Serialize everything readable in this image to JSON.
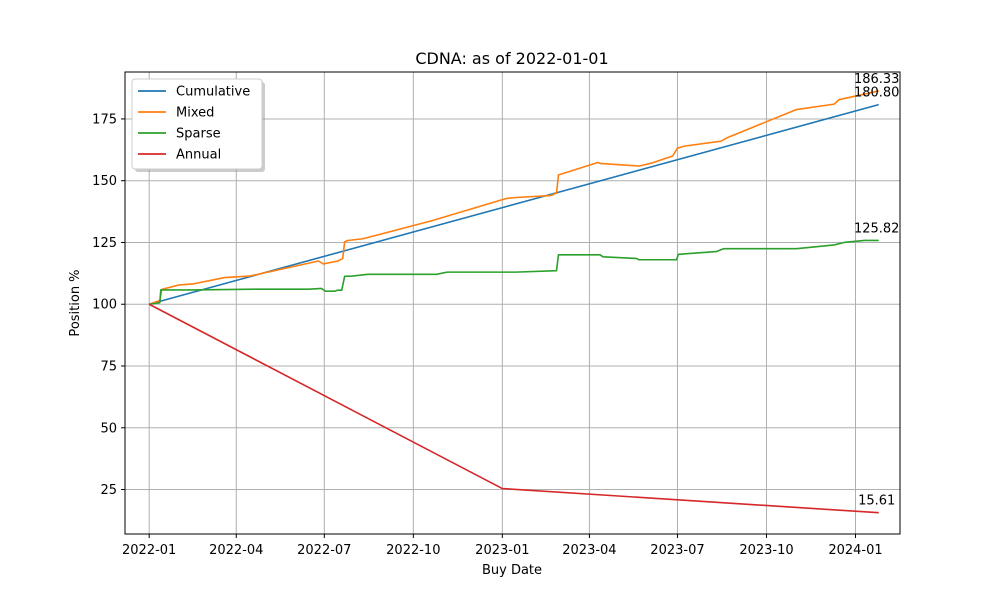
{
  "chart_data": {
    "type": "line",
    "title": "CDNA: as of 2022-01-01",
    "xlabel": "Buy Date",
    "ylabel": "Position %",
    "x_ticks": [
      "2022-01",
      "2022-04",
      "2022-07",
      "2022-10",
      "2023-01",
      "2023-04",
      "2023-07",
      "2023-10",
      "2024-01"
    ],
    "y_ticks": [
      "25",
      "50",
      "75",
      "100",
      "125",
      "150",
      "175"
    ],
    "ylim": [
      7,
      194
    ],
    "xlim": [
      "2021-12-07",
      "2024-02-16"
    ],
    "grid": true,
    "legend_position": "top-left",
    "series": [
      {
        "name": "Cumulative",
        "color": "#1f77b4",
        "points": [
          [
            "2022-01-01",
            100
          ],
          [
            "2024-01-25",
            180.8
          ]
        ]
      },
      {
        "name": "Mixed",
        "color": "#ff7f0e",
        "points": [
          [
            "2022-01-01",
            100
          ],
          [
            "2022-01-12",
            101.5
          ],
          [
            "2022-01-14",
            106
          ],
          [
            "2022-02-01",
            107.8
          ],
          [
            "2022-02-15",
            108.2
          ],
          [
            "2022-03-20",
            110.8
          ],
          [
            "2022-04-15",
            111.4
          ],
          [
            "2022-06-25",
            117.5
          ],
          [
            "2022-06-30",
            116.3
          ],
          [
            "2022-07-15",
            117.5
          ],
          [
            "2022-07-20",
            118.5
          ],
          [
            "2022-07-22",
            125.2
          ],
          [
            "2022-07-25",
            125.8
          ],
          [
            "2022-08-10",
            126.5
          ],
          [
            "2022-10-20",
            133.8
          ],
          [
            "2023-01-05",
            142.8
          ],
          [
            "2023-01-15",
            143.2
          ],
          [
            "2023-02-20",
            144.0
          ],
          [
            "2023-02-26",
            145.0
          ],
          [
            "2023-02-28",
            152.3
          ],
          [
            "2023-04-10",
            157.4
          ],
          [
            "2023-04-12",
            157.0
          ],
          [
            "2023-05-20",
            156.0
          ],
          [
            "2023-05-22",
            155.9
          ],
          [
            "2023-06-05",
            157.2
          ],
          [
            "2023-06-26",
            160.0
          ],
          [
            "2023-07-01",
            163.2
          ],
          [
            "2023-07-08",
            164.0
          ],
          [
            "2023-08-15",
            166.0
          ],
          [
            "2023-08-22",
            167.5
          ],
          [
            "2023-11-01",
            178.8
          ],
          [
            "2023-12-10",
            181.0
          ],
          [
            "2023-12-15",
            182.8
          ],
          [
            "2024-01-25",
            186.33
          ]
        ]
      },
      {
        "name": "Sparse",
        "color": "#2ca02c",
        "points": [
          [
            "2022-01-01",
            100
          ],
          [
            "2022-01-12",
            100.6
          ],
          [
            "2022-01-13",
            105.8
          ],
          [
            "2022-02-15",
            105.8
          ],
          [
            "2022-04-20",
            106.1
          ],
          [
            "2022-06-15",
            106.1
          ],
          [
            "2022-06-28",
            106.4
          ],
          [
            "2022-07-02",
            105.3
          ],
          [
            "2022-07-12",
            105.3
          ],
          [
            "2022-07-15",
            105.7
          ],
          [
            "2022-07-19",
            105.7
          ],
          [
            "2022-07-22",
            111.3
          ],
          [
            "2022-07-30",
            111.4
          ],
          [
            "2022-08-15",
            112.1
          ],
          [
            "2022-10-25",
            112.1
          ],
          [
            "2022-11-05",
            113.0
          ],
          [
            "2023-01-15",
            113.0
          ],
          [
            "2023-02-26",
            113.6
          ],
          [
            "2023-02-28",
            120.0
          ],
          [
            "2023-04-12",
            120.0
          ],
          [
            "2023-04-15",
            119.2
          ],
          [
            "2023-05-20",
            118.5
          ],
          [
            "2023-05-22",
            118.0
          ],
          [
            "2023-06-30",
            118.0
          ],
          [
            "2023-07-02",
            120.2
          ],
          [
            "2023-08-10",
            121.3
          ],
          [
            "2023-08-18",
            122.5
          ],
          [
            "2023-11-01",
            122.5
          ],
          [
            "2023-12-10",
            124.0
          ],
          [
            "2023-12-20",
            125.0
          ],
          [
            "2024-01-10",
            125.82
          ],
          [
            "2024-01-25",
            125.82
          ]
        ]
      },
      {
        "name": "Annual",
        "color": "#d62728",
        "points": [
          [
            "2022-01-01",
            100
          ],
          [
            "2023-01-01",
            25.4
          ],
          [
            "2024-01-25",
            15.61
          ]
        ]
      }
    ],
    "annotations": [
      {
        "text": "186.33",
        "x": "2024-01-25",
        "y": 186.33
      },
      {
        "text": "180.80",
        "x": "2024-01-25",
        "y": 180.8
      },
      {
        "text": "125.82",
        "x": "2024-01-25",
        "y": 125.82
      },
      {
        "text": "15.61",
        "x": "2024-01-25",
        "y": 15.61
      }
    ]
  }
}
